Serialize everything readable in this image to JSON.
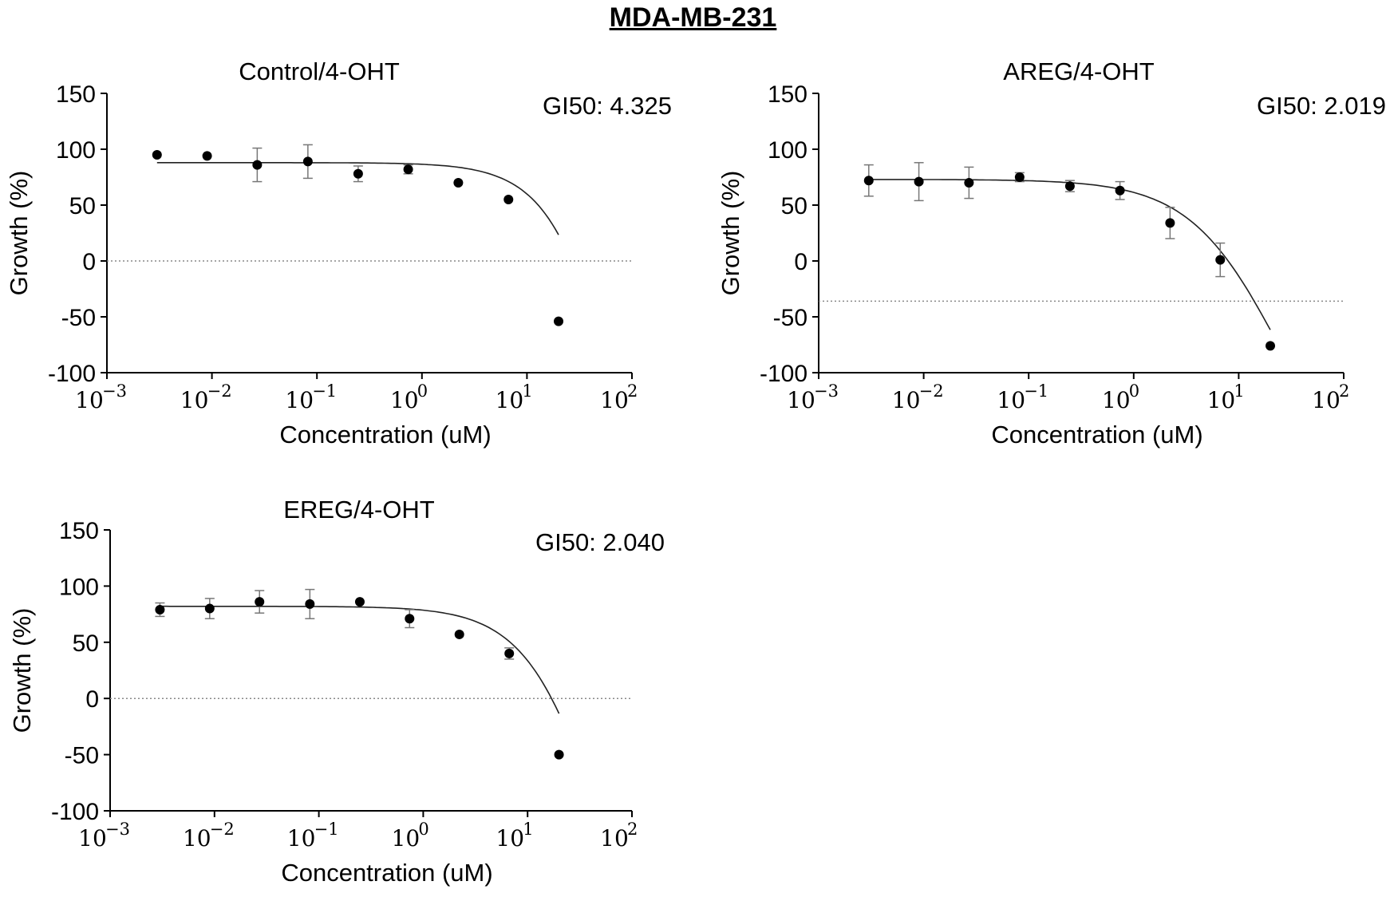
{
  "figure_title": "MDA-MB-231",
  "chart_data": [
    {
      "type": "scatter",
      "title": "Control/4-OHT",
      "annotation": "GI50: 4.325",
      "xlabel": "Concentration (uM)",
      "ylabel": "Growth (%)",
      "xscale": "log",
      "xlim": [
        0.001,
        100
      ],
      "ylim": [
        -100,
        150
      ],
      "yticks": [
        "150",
        "100",
        "50",
        "0",
        "-50",
        "-100"
      ],
      "xticks": [
        {
          "base": "10",
          "exp": "−3"
        },
        {
          "base": "10",
          "exp": "−2"
        },
        {
          "base": "10",
          "exp": "−1"
        },
        {
          "base": "10",
          "exp": "0"
        },
        {
          "base": "10",
          "exp": "1"
        },
        {
          "base": "10",
          "exp": "2"
        }
      ],
      "reference_line": 0,
      "x": [
        0.003,
        0.009,
        0.027,
        0.082,
        0.247,
        0.74,
        2.22,
        6.67,
        20
      ],
      "y": [
        95,
        94,
        86,
        89,
        78,
        82,
        70,
        55,
        -54
      ],
      "err": [
        0,
        0,
        15,
        15,
        7,
        4,
        0,
        0,
        0
      ],
      "fit": {
        "top": 88,
        "bottom": -500,
        "ec50": 100,
        "hill": 1.3
      }
    },
    {
      "type": "scatter",
      "title": "AREG/4-OHT",
      "annotation": "GI50: 2.019",
      "xlabel": "Concentration (uM)",
      "ylabel": "Growth (%)",
      "xscale": "log",
      "xlim": [
        0.001,
        100
      ],
      "ylim": [
        -100,
        150
      ],
      "yticks": [
        "150",
        "100",
        "50",
        "0",
        "-50",
        "-100"
      ],
      "xticks": [
        {
          "base": "10",
          "exp": "−3"
        },
        {
          "base": "10",
          "exp": "−2"
        },
        {
          "base": "10",
          "exp": "−1"
        },
        {
          "base": "10",
          "exp": "0"
        },
        {
          "base": "10",
          "exp": "1"
        },
        {
          "base": "10",
          "exp": "2"
        }
      ],
      "reference_line": -36,
      "x": [
        0.003,
        0.009,
        0.027,
        0.082,
        0.247,
        0.74,
        2.22,
        6.67,
        20
      ],
      "y": [
        72,
        71,
        70,
        75,
        67,
        63,
        34,
        1,
        -76
      ],
      "err": [
        14,
        17,
        14,
        4,
        5,
        8,
        14,
        15,
        0
      ],
      "fit": {
        "top": 73,
        "bottom": -230,
        "ec50": 25,
        "hill": 1.0
      }
    },
    {
      "type": "scatter",
      "title": "EREG/4-OHT",
      "annotation": "GI50: 2.040",
      "xlabel": "Concentration (uM)",
      "ylabel": "Growth (%)",
      "xscale": "log",
      "xlim": [
        0.001,
        100
      ],
      "ylim": [
        -100,
        150
      ],
      "yticks": [
        "150",
        "100",
        "50",
        "0",
        "-50",
        "-100"
      ],
      "xticks": [
        {
          "base": "10",
          "exp": "−3"
        },
        {
          "base": "10",
          "exp": "−2"
        },
        {
          "base": "10",
          "exp": "−1"
        },
        {
          "base": "10",
          "exp": "0"
        },
        {
          "base": "10",
          "exp": "1"
        },
        {
          "base": "10",
          "exp": "2"
        }
      ],
      "reference_line": 0,
      "x": [
        0.003,
        0.009,
        0.027,
        0.082,
        0.247,
        0.74,
        2.22,
        6.67,
        20
      ],
      "y": [
        79,
        80,
        86,
        84,
        86,
        71,
        57,
        40,
        -50
      ],
      "err": [
        6,
        9,
        10,
        13,
        0,
        8,
        0,
        5,
        0
      ],
      "fit": {
        "top": 82,
        "bottom": -300,
        "ec50": 50,
        "hill": 1.2
      }
    }
  ]
}
